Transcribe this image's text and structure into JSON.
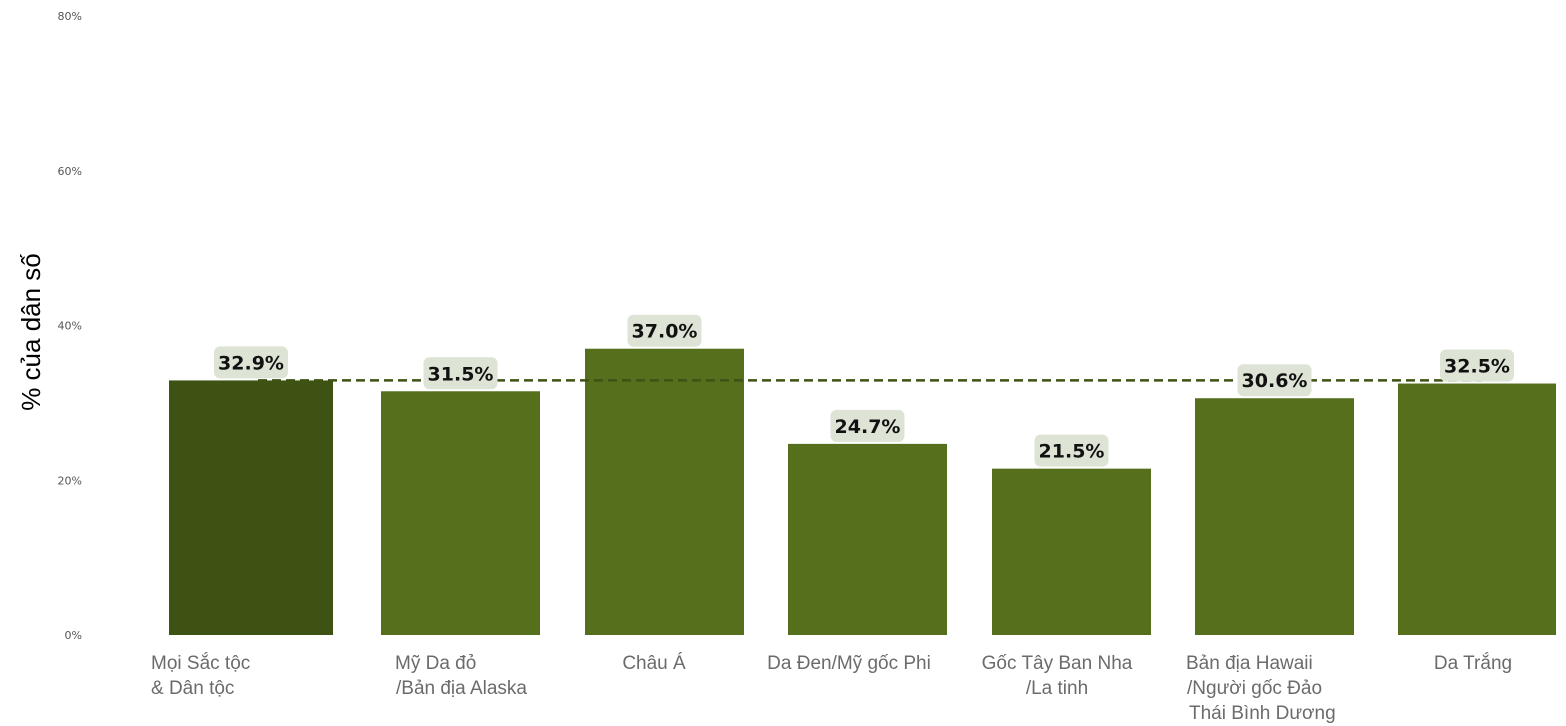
{
  "chart_data": {
    "type": "bar",
    "ylabel": "% của dân số",
    "ylim": [
      0,
      80
    ],
    "yticks": [
      "0%",
      "20%",
      "40%",
      "60%",
      "80%"
    ],
    "yticks_values": [
      0,
      20,
      40,
      60,
      80
    ],
    "grid": false,
    "categories": [
      [
        "Mọi Sắc tộc",
        "& Dân tộc"
      ],
      [
        "Mỹ Da đỏ",
        "/Bản địa Alaska"
      ],
      [
        "Châu Á"
      ],
      [
        "Da Đen/Mỹ gốc Phi"
      ],
      [
        "Gốc Tây Ban Nha",
        "/La tinh"
      ],
      [
        "Bản địa Hawaii",
        "/Người gốc Đảo",
        "Thái Bình Dương"
      ],
      [
        "Da Trắng"
      ]
    ],
    "values": [
      32.9,
      31.5,
      37.0,
      24.7,
      21.5,
      30.6,
      32.5
    ],
    "data_labels": [
      "32.9%",
      "31.5%",
      "37.0%",
      "24.7%",
      "21.5%",
      "30.6%",
      "32.5%"
    ],
    "reference_line": {
      "value": 32.9,
      "style": "dashed"
    },
    "colors": {
      "highlight": "#3e5214",
      "bar": "#556f1c",
      "label_bg": "#dde3d5",
      "ref_line": "#3e5214"
    }
  }
}
